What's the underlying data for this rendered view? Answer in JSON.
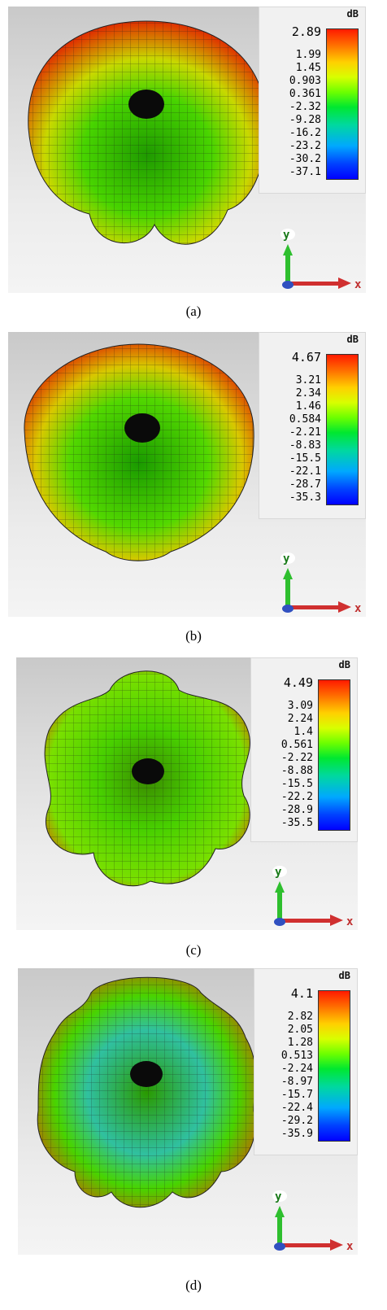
{
  "unit": "dB",
  "axis_labels": {
    "y": "y",
    "x": "x"
  },
  "panels": [
    {
      "caption": "(a)",
      "ticks": [
        "2.89",
        "1.99",
        "1.45",
        "0.903",
        "0.361",
        "-2.32",
        "-9.28",
        "-16.2",
        "-23.2",
        "-30.2",
        "-37.1"
      ],
      "max_color": "#ff1a00"
    },
    {
      "caption": "(b)",
      "ticks": [
        "4.67",
        "3.21",
        "2.34",
        "1.46",
        "0.584",
        "-2.21",
        "-8.83",
        "-15.5",
        "-22.1",
        "-28.7",
        "-35.3"
      ],
      "max_color": "#ff1a00"
    },
    {
      "caption": "(c)",
      "ticks": [
        "4.49",
        "3.09",
        "2.24",
        "1.4",
        "0.561",
        "-2.22",
        "-8.88",
        "-15.5",
        "-22.2",
        "-28.9",
        "-35.5"
      ],
      "max_color": "#ff1a00"
    },
    {
      "caption": "(d)",
      "ticks": [
        "4.1",
        "2.82",
        "2.05",
        "1.28",
        "0.513",
        "-2.24",
        "-8.97",
        "-15.7",
        "-22.4",
        "-29.2",
        "-35.9"
      ],
      "max_color": "#ff1a00"
    }
  ]
}
